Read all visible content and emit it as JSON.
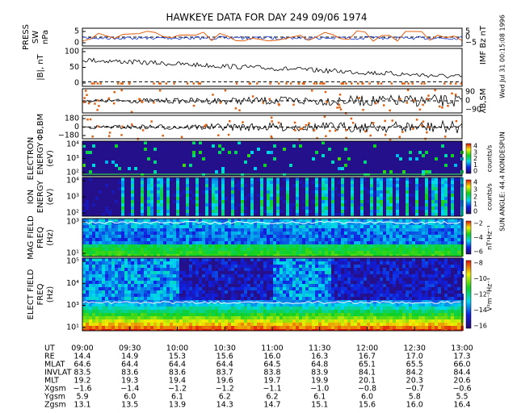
{
  "header": {
    "title": "HAWKEYE DATA FOR DAY 249 09/06 1974",
    "run_date": "Wed Jul 31 00:15:08 1996",
    "sun_angle": "SUN ANGLE:  44.4 NONDESPUN"
  },
  "panels": [
    {
      "labels": [
        "PRESS",
        "SW",
        "nPa"
      ],
      "ticks": [
        "5",
        "0"
      ],
      "right_label": "IMF Bz nT",
      "right_ticks": [
        "5",
        "0",
        "−5"
      ]
    },
    {
      "labels": [
        "|B|, nT"
      ],
      "ticks": [
        "100",
        "50",
        "0"
      ]
    },
    {
      "labels": [],
      "ticks": [],
      "right_label": "λB,SM",
      "right_ticks": [
        "90",
        "0",
        "−90"
      ]
    },
    {
      "labels": [
        "ΦB,BM"
      ],
      "ticks": [
        "180",
        "0",
        "−180"
      ]
    },
    {
      "labels": [
        "ELECTRON",
        "ENERGY",
        "(eV)"
      ],
      "ticks": [
        "10⁴",
        "10³",
        "10²"
      ],
      "colorbar": [
        "4",
        "3",
        "2",
        "1",
        "0"
      ],
      "colorbar_label": "counts/s"
    },
    {
      "labels": [
        "ION",
        "ENERGY",
        "(eV)"
      ],
      "ticks": [
        "10⁴",
        "10³",
        "10²"
      ],
      "colorbar": [
        "4",
        "3",
        "2",
        "1",
        "0"
      ],
      "colorbar_label": "counts/s"
    },
    {
      "labels": [
        "MAG FIELD",
        "FREQ",
        "(Hz)"
      ],
      "ticks": [
        "10³",
        "10¹"
      ],
      "colorbar": [
        "−2",
        "−4",
        "−6"
      ],
      "colorbar_label": "nT²Hz⁻¹"
    },
    {
      "labels": [
        "ELECT FIELD",
        "FREQ",
        "(Hz)"
      ],
      "ticks": [
        "10⁵",
        "10⁴",
        "10³",
        "10¹"
      ],
      "colorbar": [
        "−8",
        "−10",
        "−12",
        "−14",
        "−16"
      ],
      "colorbar_label": "V²m⁻²Hz⁻¹"
    }
  ],
  "table": {
    "rows": [
      [
        "UT",
        "09:00",
        "09:30",
        "10:00",
        "10:30",
        "11:00",
        "11:30",
        "12:00",
        "12:30",
        "13:00"
      ],
      [
        "RE",
        "14.4",
        "14.9",
        "15.3",
        "15.6",
        "16.0",
        "16.3",
        "16.7",
        "17.0",
        "17.3"
      ],
      [
        "MLAT",
        "64.6",
        "64.4",
        "64.4",
        "64.4",
        "64.5",
        "64.8",
        "65.1",
        "65.5",
        "66.0"
      ],
      [
        "INVLAT",
        "83.5",
        "83.6",
        "83.6",
        "83.7",
        "83.8",
        "83.9",
        "84.1",
        "84.2",
        "84.4"
      ],
      [
        "MLT",
        "19.2",
        "19.3",
        "19.4",
        "19.6",
        "19.7",
        "19.9",
        "20.1",
        "20.3",
        "20.6"
      ],
      [
        "Xgsm",
        "−1.6",
        "−1.4",
        "−1.2",
        "−1.2",
        "−1.1",
        "−1.0",
        "−0.8",
        "−0.7",
        "−0.6"
      ],
      [
        "Ygsm",
        "5.9",
        "6.0",
        "6.1",
        "6.2",
        "6.2",
        "6.1",
        "6.0",
        "5.8",
        "5.5"
      ],
      [
        "Zgsm",
        "13.1",
        "13.5",
        "13.9",
        "14.3",
        "14.7",
        "15.1",
        "15.6",
        "16.0",
        "16.4"
      ]
    ]
  }
}
